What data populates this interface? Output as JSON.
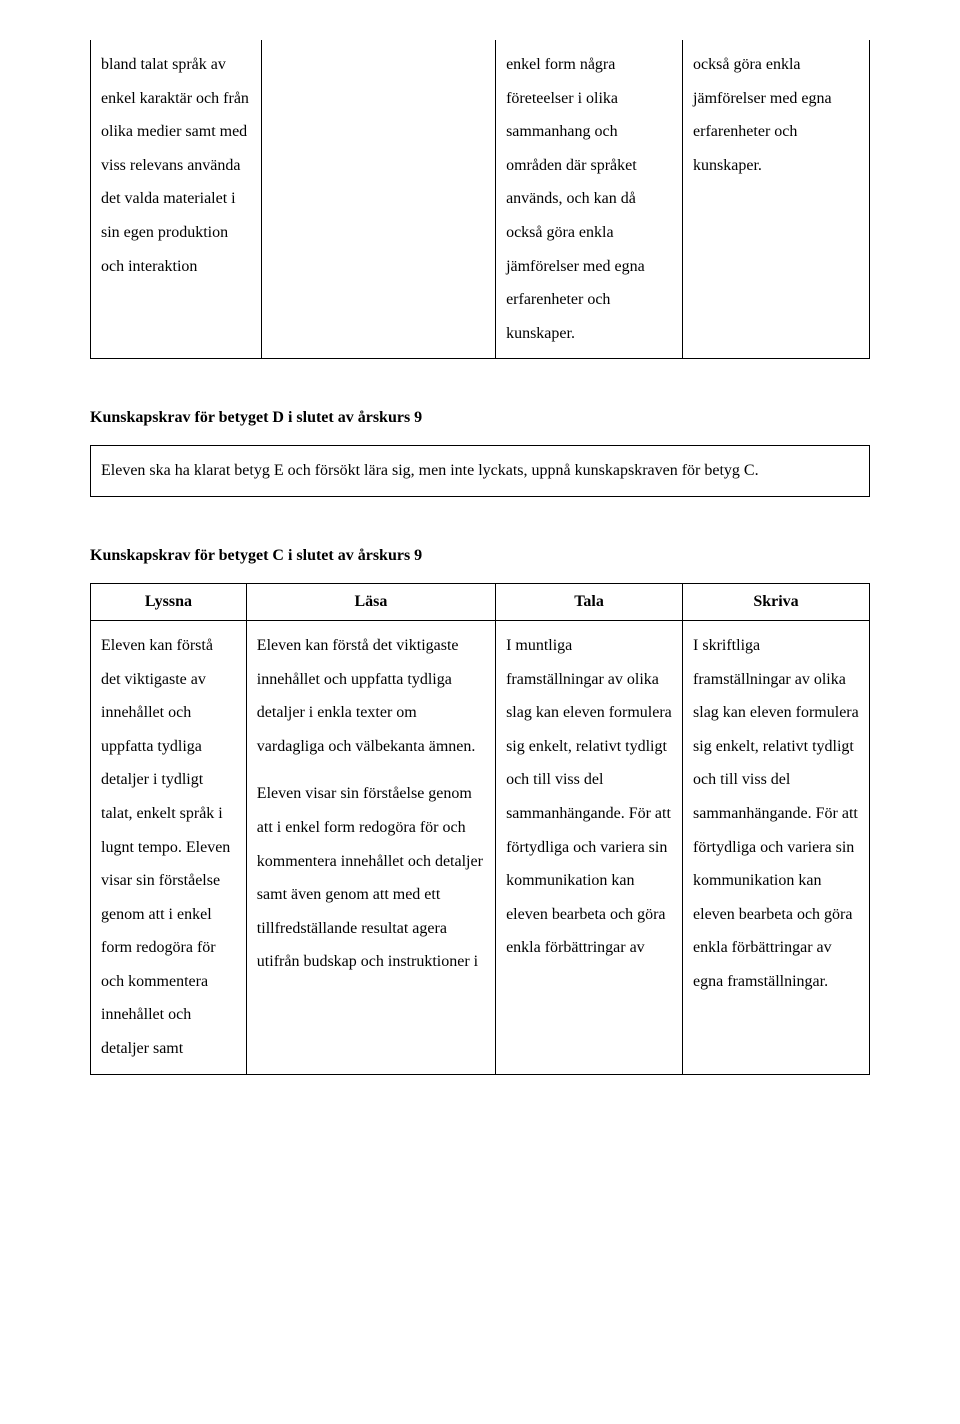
{
  "table1": {
    "col1": "bland talat språk av enkel karaktär och från olika medier samt med viss relevans använda det valda materialet i sin egen produktion och interaktion",
    "col2": "",
    "col3": "enkel form några företeelser i olika sammanhang och områden där språket används, och kan då också göra enkla jämförelser med egna erfarenheter och kunskaper.",
    "col4": "också göra enkla jämförelser med egna erfarenheter och kunskaper."
  },
  "headingD": "Kunskapskrav för betyget D i slutet av årskurs 9",
  "boxD": "Eleven ska ha klarat betyg E och försökt lära sig, men inte lyckats, uppnå kunskapskraven för betyg C.",
  "headingC": "Kunskapskrav för betyget C i slutet av årskurs 9",
  "table3": {
    "headers": [
      "Lyssna",
      "Läsa",
      "Tala",
      "Skriva"
    ],
    "row": {
      "c1p1": "Eleven kan förstå det viktigaste av innehållet och uppfatta tydliga detaljer i tydligt talat, enkelt språk i lugnt tempo. Eleven visar sin förståelse genom att i enkel form redogöra för och kommentera innehållet och detaljer samt",
      "c2p1": "Eleven kan förstå det viktigaste innehållet och uppfatta tydliga detaljer i enkla texter om vardagliga och välbekanta ämnen.",
      "c2p2": "Eleven visar sin förståelse genom att i enkel form redogöra för och kommentera innehållet och detaljer samt även genom att med ett tillfredställande resultat agera utifrån budskap och instruktioner i",
      "c3p1": "I muntliga framställningar av olika slag kan eleven formulera sig enkelt, relativt tydligt och till viss del sammanhängande. För att förtydliga och variera sin kommunikation kan eleven bearbeta och göra enkla förbättringar av",
      "c4p1": "I skriftliga framställningar av olika slag kan eleven formulera sig enkelt, relativt tydligt och till viss del sammanhängande. För att förtydliga och variera sin kommunikation kan eleven bearbeta och göra enkla förbättringar av egna framställningar."
    }
  },
  "colors": {
    "text": "#000000",
    "background": "#ffffff",
    "border": "#000000"
  },
  "typography": {
    "font_family": "Times New Roman",
    "body_fontsize_pt": 12,
    "heading_fontsize_pt": 12,
    "line_height": 2.1
  }
}
